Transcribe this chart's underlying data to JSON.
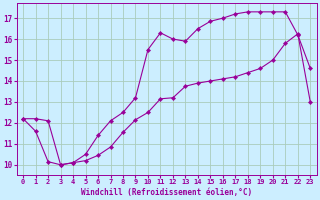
{
  "xlabel": "Windchill (Refroidissement éolien,°C)",
  "bg_color": "#cceeff",
  "line_color": "#990099",
  "grid_color": "#aaccbb",
  "xlim": [
    -0.5,
    23.5
  ],
  "ylim": [
    9.5,
    17.7
  ],
  "yticks": [
    10,
    11,
    12,
    13,
    14,
    15,
    16,
    17
  ],
  "xticks": [
    0,
    1,
    2,
    3,
    4,
    5,
    6,
    7,
    8,
    9,
    10,
    11,
    12,
    13,
    14,
    15,
    16,
    17,
    18,
    19,
    20,
    21,
    22,
    23
  ],
  "curve1_x": [
    0,
    1,
    2,
    3,
    4,
    5,
    6,
    7,
    8,
    9,
    10,
    11,
    12,
    13,
    14,
    15,
    16,
    17,
    18,
    19,
    20,
    21,
    22,
    23
  ],
  "curve1_y": [
    12.2,
    11.6,
    10.15,
    10.0,
    10.1,
    10.2,
    10.45,
    10.85,
    11.55,
    12.15,
    12.5,
    13.15,
    13.2,
    13.75,
    13.9,
    14.0,
    14.1,
    14.2,
    14.4,
    14.6,
    15.0,
    15.8,
    16.25,
    13.0
  ],
  "curve2_x": [
    0,
    1,
    2,
    3,
    4,
    5,
    6,
    7,
    8,
    9,
    10,
    11,
    12,
    13,
    14,
    15,
    16,
    17,
    18,
    19,
    20,
    21,
    22,
    23
  ],
  "curve2_y": [
    12.2,
    12.2,
    12.1,
    10.0,
    10.1,
    10.5,
    11.4,
    12.1,
    12.5,
    13.2,
    15.5,
    16.3,
    16.0,
    15.9,
    16.5,
    16.85,
    17.0,
    17.2,
    17.3,
    17.3,
    17.3,
    17.3,
    16.2,
    14.6
  ]
}
